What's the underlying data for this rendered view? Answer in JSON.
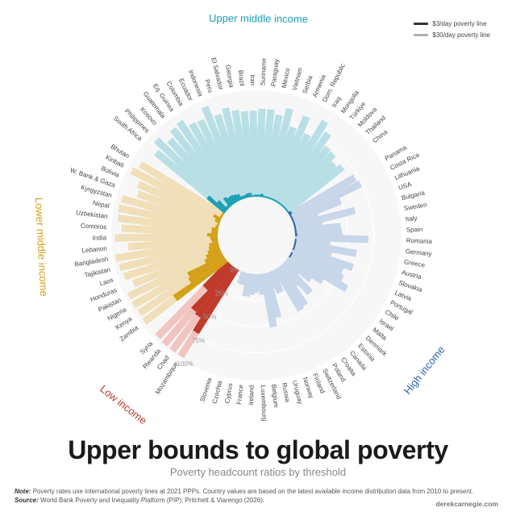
{
  "title": "Upper bounds to global poverty",
  "subtitle": "Poverty headcount ratios by threshold",
  "note_label": "Note:",
  "note_text": "Poverty rates use international poverty lines at 2021 PPPs. Country values are based on the latest available income distribution data from 2010 to present.",
  "source_label": "Source:",
  "source_text": "World Bank Poverty and Inequality Platform (PIP); Pritchett & Viarengo (2026).",
  "credit": "derekcarnegie.com",
  "legend": [
    {
      "label": "$3/day poverty line",
      "color": "#333333"
    },
    {
      "label": "$30/day poverty line",
      "color": "#b0b0b0"
    }
  ],
  "chart_data": {
    "type": "bar",
    "layout": "radial",
    "axis_ticks": [
      "0%",
      "25%",
      "50%",
      "75%",
      "100%"
    ],
    "ylim": [
      0,
      100
    ],
    "series_names": [
      "$3/day poverty line",
      "$30/day poverty line"
    ],
    "groups": [
      {
        "name": "Low income",
        "color": "#c0392b",
        "light": "#f2c4c0",
        "countries": [
          {
            "name": "Mozambique",
            "p3": 72,
            "p30": 99
          },
          {
            "name": "Chad",
            "p3": 58,
            "p30": 99
          },
          {
            "name": "Rwanda",
            "p3": 56,
            "p30": 99
          },
          {
            "name": "Syria",
            "p3": 33,
            "p30": 98
          }
        ]
      },
      {
        "name": "Lower middle income",
        "color": "#d4a017",
        "light": "#f0dfb8",
        "countries": [
          {
            "name": "Zambia",
            "p3": 61,
            "p30": 98
          },
          {
            "name": "Kenya",
            "p3": 40,
            "p30": 97
          },
          {
            "name": "Nigeria",
            "p3": 38,
            "p30": 98
          },
          {
            "name": "Pakistan",
            "p3": 18,
            "p30": 98
          },
          {
            "name": "Honduras",
            "p3": 15,
            "p30": 89
          },
          {
            "name": "Laos",
            "p3": 12,
            "p30": 95
          },
          {
            "name": "Tajikistan",
            "p3": 10,
            "p30": 97
          },
          {
            "name": "Bangladesh",
            "p3": 9,
            "p30": 99
          },
          {
            "name": "Lebanon",
            "p3": 6,
            "p30": 86
          },
          {
            "name": "India",
            "p3": 7,
            "p30": 98
          },
          {
            "name": "Comoros",
            "p3": 10,
            "p30": 92
          },
          {
            "name": "Uzbekistan",
            "p3": 6,
            "p30": 96
          },
          {
            "name": "Nepal",
            "p3": 6,
            "p30": 97
          },
          {
            "name": "Kyrgyzstan",
            "p3": 3,
            "p30": 96
          },
          {
            "name": "W. Bank & Gaza",
            "p3": 2,
            "p30": 83
          },
          {
            "name": "Bolivia",
            "p3": 5,
            "p30": 86
          },
          {
            "name": "Kiribati",
            "p3": 8,
            "p30": 97
          },
          {
            "name": "Bhutan",
            "p3": 2,
            "p30": 93
          }
        ]
      },
      {
        "name": "Upper middle income",
        "color": "#1ba0b5",
        "light": "#b9dfe6",
        "countries": [
          {
            "name": "South Africa",
            "p3": 22,
            "p30": 87
          },
          {
            "name": "Philippines",
            "p3": 12,
            "p30": 95
          },
          {
            "name": "Kosovo",
            "p3": 3,
            "p30": 86
          },
          {
            "name": "Guatemala",
            "p3": 10,
            "p30": 92
          },
          {
            "name": "Eq. Guinea",
            "p3": 8,
            "p30": 94
          },
          {
            "name": "Colombia",
            "p3": 8,
            "p30": 86
          },
          {
            "name": "Ecuador",
            "p3": 7,
            "p30": 85
          },
          {
            "name": "Indonesia",
            "p3": 6,
            "p30": 95
          },
          {
            "name": "Peru",
            "p3": 3,
            "p30": 84
          },
          {
            "name": "El Salvador",
            "p3": 3,
            "p30": 88
          },
          {
            "name": "Georgia",
            "p3": 4,
            "p30": 84
          },
          {
            "name": "Brazil",
            "p3": 4,
            "p30": 82
          },
          {
            "name": "Iran",
            "p3": 1,
            "p30": 82
          },
          {
            "name": "Suriname",
            "p3": 2,
            "p30": 84
          },
          {
            "name": "Paraguay",
            "p3": 2,
            "p30": 84
          },
          {
            "name": "Mexico",
            "p3": 3,
            "p30": 80
          },
          {
            "name": "Vietnam",
            "p3": 1,
            "p30": 88
          },
          {
            "name": "Serbia",
            "p3": 1,
            "p30": 72
          },
          {
            "name": "Armenia",
            "p3": 1,
            "p30": 86
          },
          {
            "name": "Dom. Republic",
            "p3": 1,
            "p30": 71
          },
          {
            "name": "Iraq",
            "p3": 1,
            "p30": 90
          },
          {
            "name": "Mongolia",
            "p3": 1,
            "p30": 82
          },
          {
            "name": "Türkiye",
            "p3": 1,
            "p30": 71
          },
          {
            "name": "Moldova",
            "p3": 1,
            "p30": 70
          },
          {
            "name": "Thailand",
            "p3": 1,
            "p30": 64
          },
          {
            "name": "China",
            "p3": 1,
            "p30": 68
          }
        ]
      },
      {
        "name": "High income",
        "color": "#2e64a8",
        "light": "#c8d6ea",
        "countries": [
          {
            "name": "Panama",
            "p3": 3,
            "p30": 72
          },
          {
            "name": "Costa Rica",
            "p3": 1,
            "p30": 74
          },
          {
            "name": "Lithuania",
            "p3": 1,
            "p30": 50
          },
          {
            "name": "USA",
            "p3": 1,
            "p30": 25
          },
          {
            "name": "Bulgaria",
            "p3": 1,
            "p30": 60
          },
          {
            "name": "Sweden",
            "p3": 1,
            "p30": 27
          },
          {
            "name": "Italy",
            "p3": 1,
            "p30": 44
          },
          {
            "name": "Spain",
            "p3": 1,
            "p30": 45
          },
          {
            "name": "Romania",
            "p3": 2,
            "p30": 70
          },
          {
            "name": "Germany",
            "p3": 0,
            "p30": 34
          },
          {
            "name": "Greece",
            "p3": 1,
            "p30": 60
          },
          {
            "name": "Austria",
            "p3": 1,
            "p30": 37
          },
          {
            "name": "Slovakia",
            "p3": 1,
            "p30": 60
          },
          {
            "name": "Latvia",
            "p3": 1,
            "p30": 52
          },
          {
            "name": "Portugal",
            "p3": 0,
            "p30": 55
          },
          {
            "name": "Chile",
            "p3": 1,
            "p30": 63
          },
          {
            "name": "Israel",
            "p3": 1,
            "p30": 40
          },
          {
            "name": "Malta",
            "p3": 0,
            "p30": 30
          },
          {
            "name": "Denmark",
            "p3": 0,
            "p30": 18
          },
          {
            "name": "Estonia",
            "p3": 0,
            "p30": 38
          },
          {
            "name": "Canada",
            "p3": 0,
            "p30": 25
          },
          {
            "name": "Croatia",
            "p3": 0,
            "p30": 44
          },
          {
            "name": "Poland",
            "p3": 0,
            "p30": 46
          },
          {
            "name": "Switzerland",
            "p3": 0,
            "p30": 12
          },
          {
            "name": "Finland",
            "p3": 0,
            "p30": 22
          },
          {
            "name": "Norway",
            "p3": 0,
            "p30": 15
          },
          {
            "name": "Uruguay",
            "p3": 0,
            "p30": 44
          },
          {
            "name": "Russia",
            "p3": 0,
            "p30": 52
          },
          {
            "name": "Belgium",
            "p3": 0,
            "p30": 20
          },
          {
            "name": "Luxembourg",
            "p3": 0,
            "p30": 16
          },
          {
            "name": "Ireland",
            "p3": 0,
            "p30": 18
          },
          {
            "name": "France",
            "p3": 0,
            "p30": 20
          },
          {
            "name": "Cyprus",
            "p3": 0,
            "p30": 22
          },
          {
            "name": "Czechia",
            "p3": 0,
            "p30": 12
          },
          {
            "name": "Slovenia",
            "p3": 0,
            "p30": 12
          }
        ]
      }
    ]
  }
}
